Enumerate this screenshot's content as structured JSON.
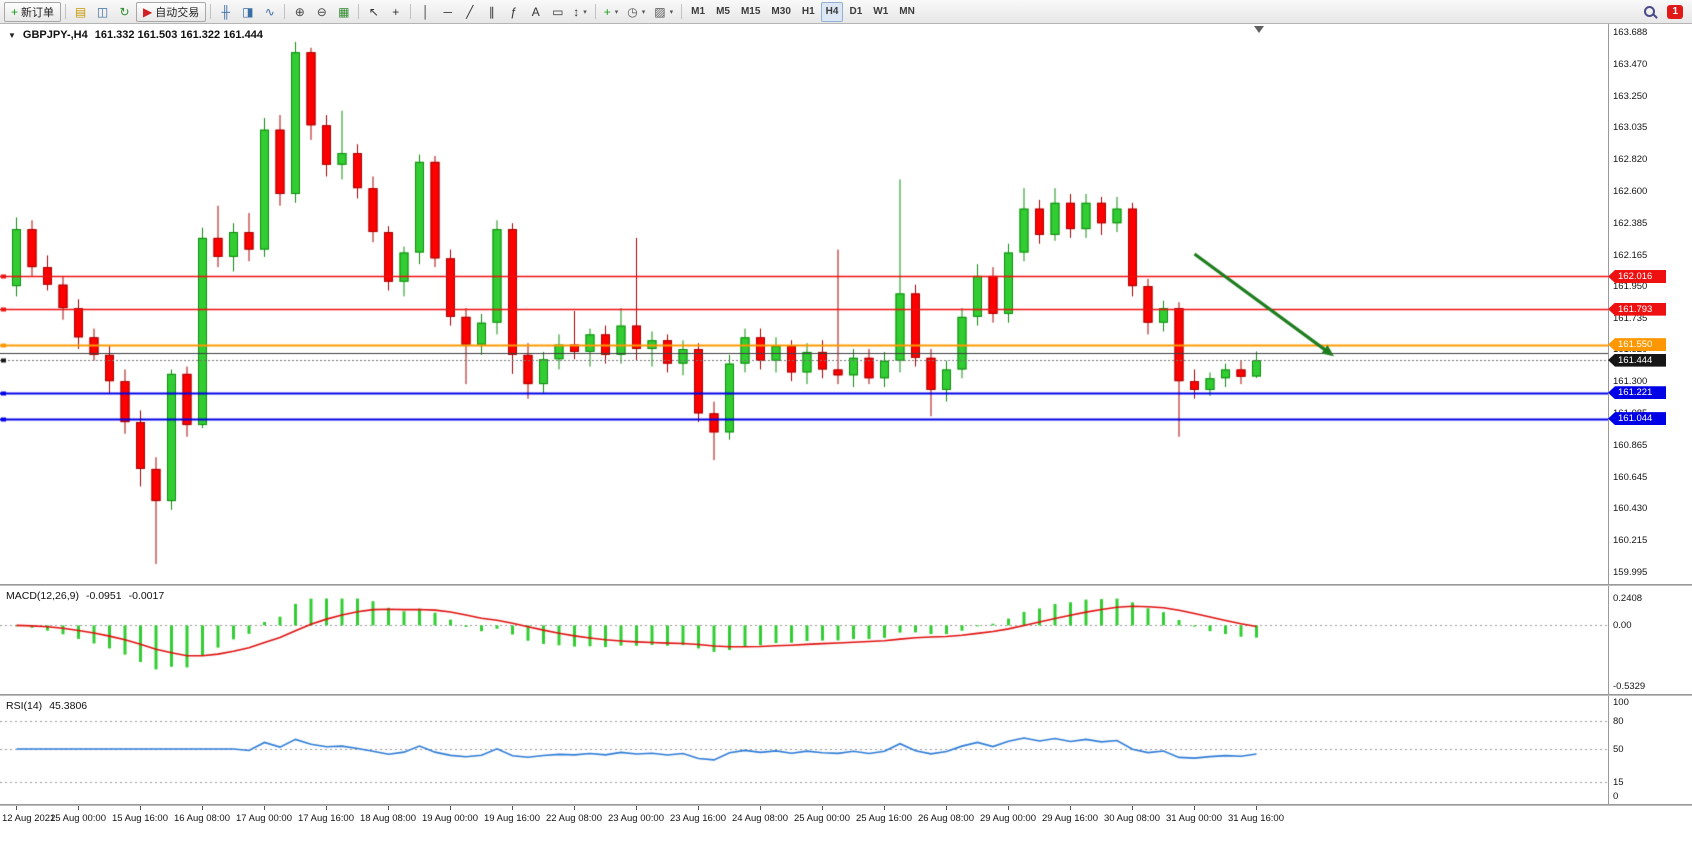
{
  "toolbar": {
    "caret_glyph": "▾",
    "notification_count": "1",
    "timeframes": [
      "M1",
      "M5",
      "M15",
      "M30",
      "H1",
      "H4",
      "D1",
      "W1",
      "MN"
    ],
    "active_timeframe": "H4",
    "items": [
      {
        "name": "new-order-button",
        "label": "新订单",
        "icon": "new-order-icon",
        "glyph": "+",
        "color": "#18a018"
      },
      {
        "sep": true
      },
      {
        "name": "profiles-button",
        "icon": "profiles-icon",
        "glyph": "▤",
        "color": "#c89600"
      },
      {
        "name": "market-watch-button",
        "icon": "market-watch-icon",
        "glyph": "◫",
        "color": "#3a6ea5"
      },
      {
        "name": "refresh-button",
        "icon": "refresh-icon",
        "glyph": "↻",
        "color": "#2e8b2e"
      },
      {
        "name": "auto-trading-button",
        "label": "自动交易",
        "icon": "auto-trading-icon",
        "glyph": "▶",
        "color": "#d02020"
      },
      {
        "sep": true
      },
      {
        "name": "bar-chart-button",
        "icon": "bar-chart-icon",
        "glyph": "╫",
        "color": "#3a6ea5"
      },
      {
        "name": "candlestick-chart-button",
        "icon": "candlestick-chart-icon",
        "glyph": "◨",
        "color": "#3a6ea5"
      },
      {
        "name": "line-chart-button",
        "icon": "line-chart-icon",
        "glyph": "∿",
        "color": "#3a6ea5"
      },
      {
        "sep": true
      },
      {
        "name": "zoom-in-button",
        "icon": "zoom-in-icon",
        "glyph": "⊕",
        "color": "#454545"
      },
      {
        "name": "zoom-out-button",
        "icon": "zoom-out-icon",
        "glyph": "⊖",
        "color": "#454545"
      },
      {
        "name": "tile-windows-button",
        "icon": "tile-windows-icon",
        "glyph": "▦",
        "color": "#2e8b2e"
      },
      {
        "sep": true
      },
      {
        "name": "cursor-button",
        "icon": "cursor-icon",
        "glyph": "↖",
        "color": "#333333"
      },
      {
        "name": "crosshair-button",
        "icon": "crosshair-icon",
        "glyph": "+",
        "color": "#333333"
      },
      {
        "sep": true
      },
      {
        "name": "vertical-line-button",
        "icon": "vertical-line-icon",
        "glyph": "│",
        "color": "#333333"
      },
      {
        "name": "horizontal-line-button",
        "icon": "horizontal-line-icon",
        "glyph": "─",
        "color": "#333333"
      },
      {
        "name": "trendline-button",
        "icon": "trendline-icon",
        "glyph": "╱",
        "color": "#333333"
      },
      {
        "name": "channel-button",
        "icon": "channel-icon",
        "glyph": "∥",
        "color": "#333333"
      },
      {
        "name": "fibonacci-button",
        "icon": "fibonacci-icon",
        "glyph": "ƒ",
        "color": "#333333"
      },
      {
        "name": "text-button",
        "icon": "text-icon",
        "glyph": "A",
        "color": "#333333"
      },
      {
        "name": "text-label-button",
        "icon": "text-label-icon",
        "glyph": "▭",
        "color": "#333333"
      },
      {
        "name": "arrow-tools-button",
        "icon": "arrow-tools-icon",
        "glyph": "↕",
        "color": "#333333",
        "caret": true
      },
      {
        "sep": true
      },
      {
        "name": "indicators-button",
        "icon": "indicators-icon",
        "glyph": "+",
        "color": "#18a018",
        "caret": true
      },
      {
        "name": "periods-button",
        "icon": "periods-clock-icon",
        "glyph": "◷",
        "color": "#555555",
        "caret": true
      },
      {
        "name": "templates-button",
        "icon": "templates-icon",
        "glyph": "▨",
        "color": "#555555",
        "caret": true
      }
    ]
  },
  "chart": {
    "collapse_glyph": "▼",
    "symbol_title": "GBPJPY-,H4",
    "ohlc": "161.332 161.503 161.322 161.444",
    "colors": {
      "up": "#32CD32",
      "up_edge": "#0e8a0e",
      "down": "#ff0000",
      "down_edge": "#a40000"
    },
    "price_axis": {
      "labels": [
        "163.688",
        "163.470",
        "163.250",
        "163.035",
        "162.820",
        "162.600",
        "162.385",
        "162.165",
        "161.950",
        "161.735",
        "161.520",
        "161.300",
        "161.085",
        "160.865",
        "160.645",
        "160.430",
        "160.215",
        "159.995"
      ]
    },
    "levels": [
      {
        "name": "resistance-line-1",
        "value": "162.016",
        "price": 162.016,
        "color": "#ee1111",
        "width": 1.6
      },
      {
        "name": "resistance-line-2",
        "value": "161.793",
        "price": 161.793,
        "color": "#ee1111",
        "width": 1.6
      },
      {
        "name": "pivot-line-orange",
        "value": "161.550",
        "price": 161.55,
        "color": "#ff9800",
        "width": 2.2
      },
      {
        "name": "support-line-dark",
        "value": "",
        "price": 161.492,
        "color": "#3f3f3f",
        "width": 1.2
      },
      {
        "name": "current-price-line",
        "value": "161.444",
        "price": 161.444,
        "color": "#161616",
        "width": 1,
        "dashed": true
      },
      {
        "name": "support-line-blue-1",
        "value": "161.221",
        "price": 161.221,
        "color": "#0000e6",
        "width": 2
      },
      {
        "name": "support-line-blue-2",
        "value": "161.044",
        "price": 161.044,
        "color": "#0000e6",
        "width": 2
      }
    ],
    "time_axis": [
      "12 Aug 2022",
      "15 Aug 00:00",
      "15 Aug 16:00",
      "16 Aug 08:00",
      "17 Aug 00:00",
      "17 Aug 16:00",
      "18 Aug 08:00",
      "19 Aug 00:00",
      "19 Aug 16:00",
      "22 Aug 08:00",
      "23 Aug 00:00",
      "23 Aug 16:00",
      "24 Aug 08:00",
      "25 Aug 00:00",
      "25 Aug 16:00",
      "26 Aug 08:00",
      "29 Aug 00:00",
      "29 Aug 16:00",
      "30 Aug 08:00",
      "31 Aug 00:00",
      "31 Aug 16:00"
    ]
  },
  "macd": {
    "label": "MACD(12,26,9)",
    "main_value": "-0.0951",
    "signal_value": "-0.0017",
    "scale": {
      "max": 0.2408,
      "min": -0.5329
    },
    "histogram_color": "#32CD32",
    "signal_color": "#e01010",
    "axis": [
      {
        "label": "0.2408",
        "value": 0.2408
      },
      {
        "label": "0.00",
        "value": 0
      },
      {
        "label": "-0.5329",
        "value": -0.5329
      }
    ]
  },
  "rsi": {
    "label": "RSI(14)",
    "value": "45.3806",
    "color": "#2e7bd6",
    "levels": [
      80,
      50,
      15
    ],
    "scale": {
      "max": 100,
      "min": 0
    },
    "axis": [
      {
        "label": "100",
        "value": 100
      },
      {
        "label": "80",
        "value": 80
      },
      {
        "label": "50",
        "value": 50
      },
      {
        "label": "15",
        "value": 15
      },
      {
        "label": "0",
        "value": 0
      }
    ]
  },
  "chart_data": {
    "type": "candlestick",
    "symbol": "GBPJPY-",
    "timeframe": "H4",
    "title": "GBPJPY-,H4 161.332 161.503 161.322 161.444",
    "last_ohlc": {
      "open": 161.332,
      "high": 161.503,
      "low": 161.322,
      "close": 161.444
    },
    "y_axis": {
      "min": 159.995,
      "max": 163.688
    },
    "x_tick_labels": [
      "12 Aug 2022",
      "15 Aug 00:00",
      "15 Aug 16:00",
      "16 Aug 08:00",
      "17 Aug 00:00",
      "17 Aug 16:00",
      "18 Aug 08:00",
      "19 Aug 00:00",
      "19 Aug 16:00",
      "22 Aug 08:00",
      "23 Aug 00:00",
      "23 Aug 16:00",
      "24 Aug 08:00",
      "25 Aug 00:00",
      "25 Aug 16:00",
      "26 Aug 08:00",
      "29 Aug 00:00",
      "29 Aug 16:00",
      "30 Aug 08:00",
      "31 Aug 00:00",
      "31 Aug 16:00"
    ],
    "candles": [
      [
        161.95,
        162.42,
        161.88,
        162.34
      ],
      [
        162.34,
        162.4,
        162.02,
        162.08
      ],
      [
        162.08,
        162.16,
        161.92,
        161.96
      ],
      [
        161.96,
        162.02,
        161.72,
        161.8
      ],
      [
        161.8,
        161.86,
        161.52,
        161.6
      ],
      [
        161.6,
        161.66,
        161.44,
        161.48
      ],
      [
        161.48,
        161.54,
        161.22,
        161.3
      ],
      [
        161.3,
        161.38,
        160.94,
        161.02
      ],
      [
        161.02,
        161.1,
        160.58,
        160.7
      ],
      [
        160.7,
        160.78,
        160.05,
        160.48
      ],
      [
        160.48,
        161.38,
        160.42,
        161.35
      ],
      [
        161.35,
        161.4,
        160.92,
        161.0
      ],
      [
        161.0,
        162.35,
        160.98,
        162.28
      ],
      [
        162.28,
        162.5,
        162.08,
        162.15
      ],
      [
        162.15,
        162.38,
        162.05,
        162.32
      ],
      [
        162.32,
        162.45,
        162.12,
        162.2
      ],
      [
        162.2,
        163.1,
        162.15,
        163.02
      ],
      [
        163.02,
        163.12,
        162.5,
        162.58
      ],
      [
        162.58,
        163.62,
        162.52,
        163.55
      ],
      [
        163.55,
        163.58,
        162.95,
        163.05
      ],
      [
        163.05,
        163.12,
        162.7,
        162.78
      ],
      [
        162.78,
        163.15,
        162.68,
        162.86
      ],
      [
        162.86,
        162.92,
        162.55,
        162.62
      ],
      [
        162.62,
        162.7,
        162.25,
        162.32
      ],
      [
        162.32,
        162.36,
        161.92,
        161.98
      ],
      [
        161.98,
        162.22,
        161.88,
        162.18
      ],
      [
        162.18,
        162.85,
        162.1,
        162.8
      ],
      [
        162.8,
        162.84,
        162.08,
        162.14
      ],
      [
        162.14,
        162.2,
        161.68,
        161.74
      ],
      [
        161.74,
        161.8,
        161.28,
        161.55
      ],
      [
        161.55,
        161.76,
        161.48,
        161.7
      ],
      [
        161.7,
        162.4,
        161.62,
        162.34
      ],
      [
        162.34,
        162.38,
        161.35,
        161.48
      ],
      [
        161.48,
        161.56,
        161.18,
        161.28
      ],
      [
        161.28,
        161.5,
        161.22,
        161.45
      ],
      [
        161.45,
        161.62,
        161.38,
        161.55
      ],
      [
        161.55,
        161.78,
        161.45,
        161.5
      ],
      [
        161.5,
        161.66,
        161.4,
        161.62
      ],
      [
        161.62,
        161.68,
        161.42,
        161.48
      ],
      [
        161.48,
        161.8,
        161.42,
        161.68
      ],
      [
        161.68,
        162.28,
        161.44,
        161.52
      ],
      [
        161.52,
        161.64,
        161.4,
        161.58
      ],
      [
        161.58,
        161.62,
        161.36,
        161.42
      ],
      [
        161.42,
        161.58,
        161.34,
        161.52
      ],
      [
        161.52,
        161.56,
        161.02,
        161.08
      ],
      [
        161.08,
        161.16,
        160.76,
        160.95
      ],
      [
        160.95,
        161.48,
        160.9,
        161.42
      ],
      [
        161.42,
        161.66,
        161.36,
        161.6
      ],
      [
        161.6,
        161.66,
        161.38,
        161.44
      ],
      [
        161.44,
        161.6,
        161.36,
        161.54
      ],
      [
        161.54,
        161.58,
        161.3,
        161.36
      ],
      [
        161.36,
        161.56,
        161.28,
        161.5
      ],
      [
        161.5,
        161.58,
        161.32,
        161.38
      ],
      [
        161.38,
        162.2,
        161.28,
        161.34
      ],
      [
        161.34,
        161.52,
        161.26,
        161.46
      ],
      [
        161.46,
        161.52,
        161.28,
        161.32
      ],
      [
        161.32,
        161.5,
        161.26,
        161.44
      ],
      [
        161.44,
        162.68,
        161.36,
        161.9
      ],
      [
        161.9,
        161.96,
        161.4,
        161.46
      ],
      [
        161.46,
        161.52,
        161.06,
        161.24
      ],
      [
        161.24,
        161.44,
        161.16,
        161.38
      ],
      [
        161.38,
        161.8,
        161.32,
        161.74
      ],
      [
        161.74,
        162.1,
        161.68,
        162.02
      ],
      [
        162.02,
        162.08,
        161.7,
        161.76
      ],
      [
        161.76,
        162.24,
        161.7,
        162.18
      ],
      [
        162.18,
        162.62,
        162.12,
        162.48
      ],
      [
        162.48,
        162.54,
        162.24,
        162.3
      ],
      [
        162.3,
        162.62,
        162.26,
        162.52
      ],
      [
        162.52,
        162.58,
        162.28,
        162.34
      ],
      [
        162.34,
        162.58,
        162.28,
        162.52
      ],
      [
        162.52,
        162.56,
        162.3,
        162.38
      ],
      [
        162.38,
        162.56,
        162.32,
        162.48
      ],
      [
        162.48,
        162.52,
        161.88,
        161.95
      ],
      [
        161.95,
        162.0,
        161.62,
        161.7
      ],
      [
        161.7,
        161.85,
        161.64,
        161.8
      ],
      [
        161.8,
        161.84,
        160.92,
        161.3
      ],
      [
        161.3,
        161.38,
        161.18,
        161.24
      ],
      [
        161.24,
        161.36,
        161.2,
        161.32
      ],
      [
        161.32,
        161.42,
        161.26,
        161.38
      ],
      [
        161.38,
        161.44,
        161.28,
        161.33
      ],
      [
        161.332,
        161.503,
        161.322,
        161.444
      ]
    ],
    "overlays": {
      "trend_arrow": {
        "from_bar": 77,
        "from_price": 162.17,
        "to_bar": 86,
        "to_price": 161.47,
        "color": "#1e7d1e"
      }
    },
    "indicators": [
      {
        "type": "MACD",
        "params": [
          12,
          26,
          9
        ],
        "display_values": [
          -0.0951,
          -0.0017
        ],
        "scale": {
          "max": 0.2408,
          "min": -0.5329
        }
      },
      {
        "type": "RSI",
        "params": [
          14
        ],
        "display_value": 45.3806,
        "scale": {
          "max": 100,
          "min": 0
        },
        "levels": [
          80,
          50,
          15
        ]
      }
    ]
  }
}
